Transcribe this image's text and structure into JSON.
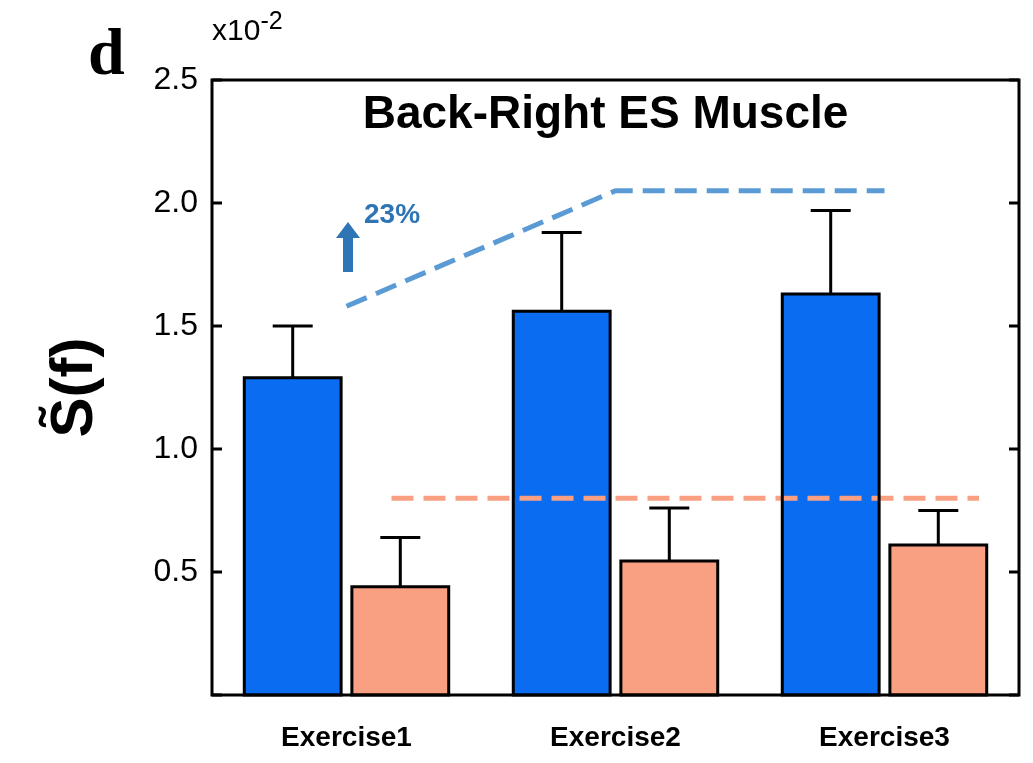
{
  "chart_data": {
    "type": "bar",
    "title": "Back-Right ES Muscle",
    "ylabel": "S̃(f)",
    "categories": [
      "Exercise1",
      "Exercise2",
      "Exercise3"
    ],
    "series": [
      {
        "color": "#0a6cf0",
        "values": [
          1.29,
          1.56,
          1.63
        ],
        "errors": [
          [
            1.29,
            1.5
          ],
          [
            1.56,
            1.88
          ],
          [
            1.63,
            1.97
          ]
        ]
      },
      {
        "color": "#f9a082",
        "values": [
          0.44,
          0.545,
          0.61
        ],
        "errors": [
          [
            0.44,
            0.64
          ],
          [
            0.545,
            0.76
          ],
          [
            0.61,
            0.75
          ]
        ]
      },
      {
        "type": "line",
        "color": "#5b9bd5",
        "line_style": "dashed",
        "values": [
          1.58,
          2.05,
          2.05
        ]
      }
    ],
    "ref_lines": [
      {
        "axis": "y",
        "value": 0.8,
        "color": "#f9a082",
        "line_style": "dashed"
      }
    ],
    "ylim": [
      0,
      2.5
    ],
    "yticks": [
      {
        "value": 0,
        "label": null
      },
      0.5,
      {
        "value": 1,
        "label": "1.0"
      },
      1.5,
      {
        "value": 2,
        "label": "2.0"
      },
      2.5
    ],
    "annotations": [
      "d",
      "x10$^{-2}$",
      "23%"
    ],
    "grid": false,
    "legend": false
  }
}
